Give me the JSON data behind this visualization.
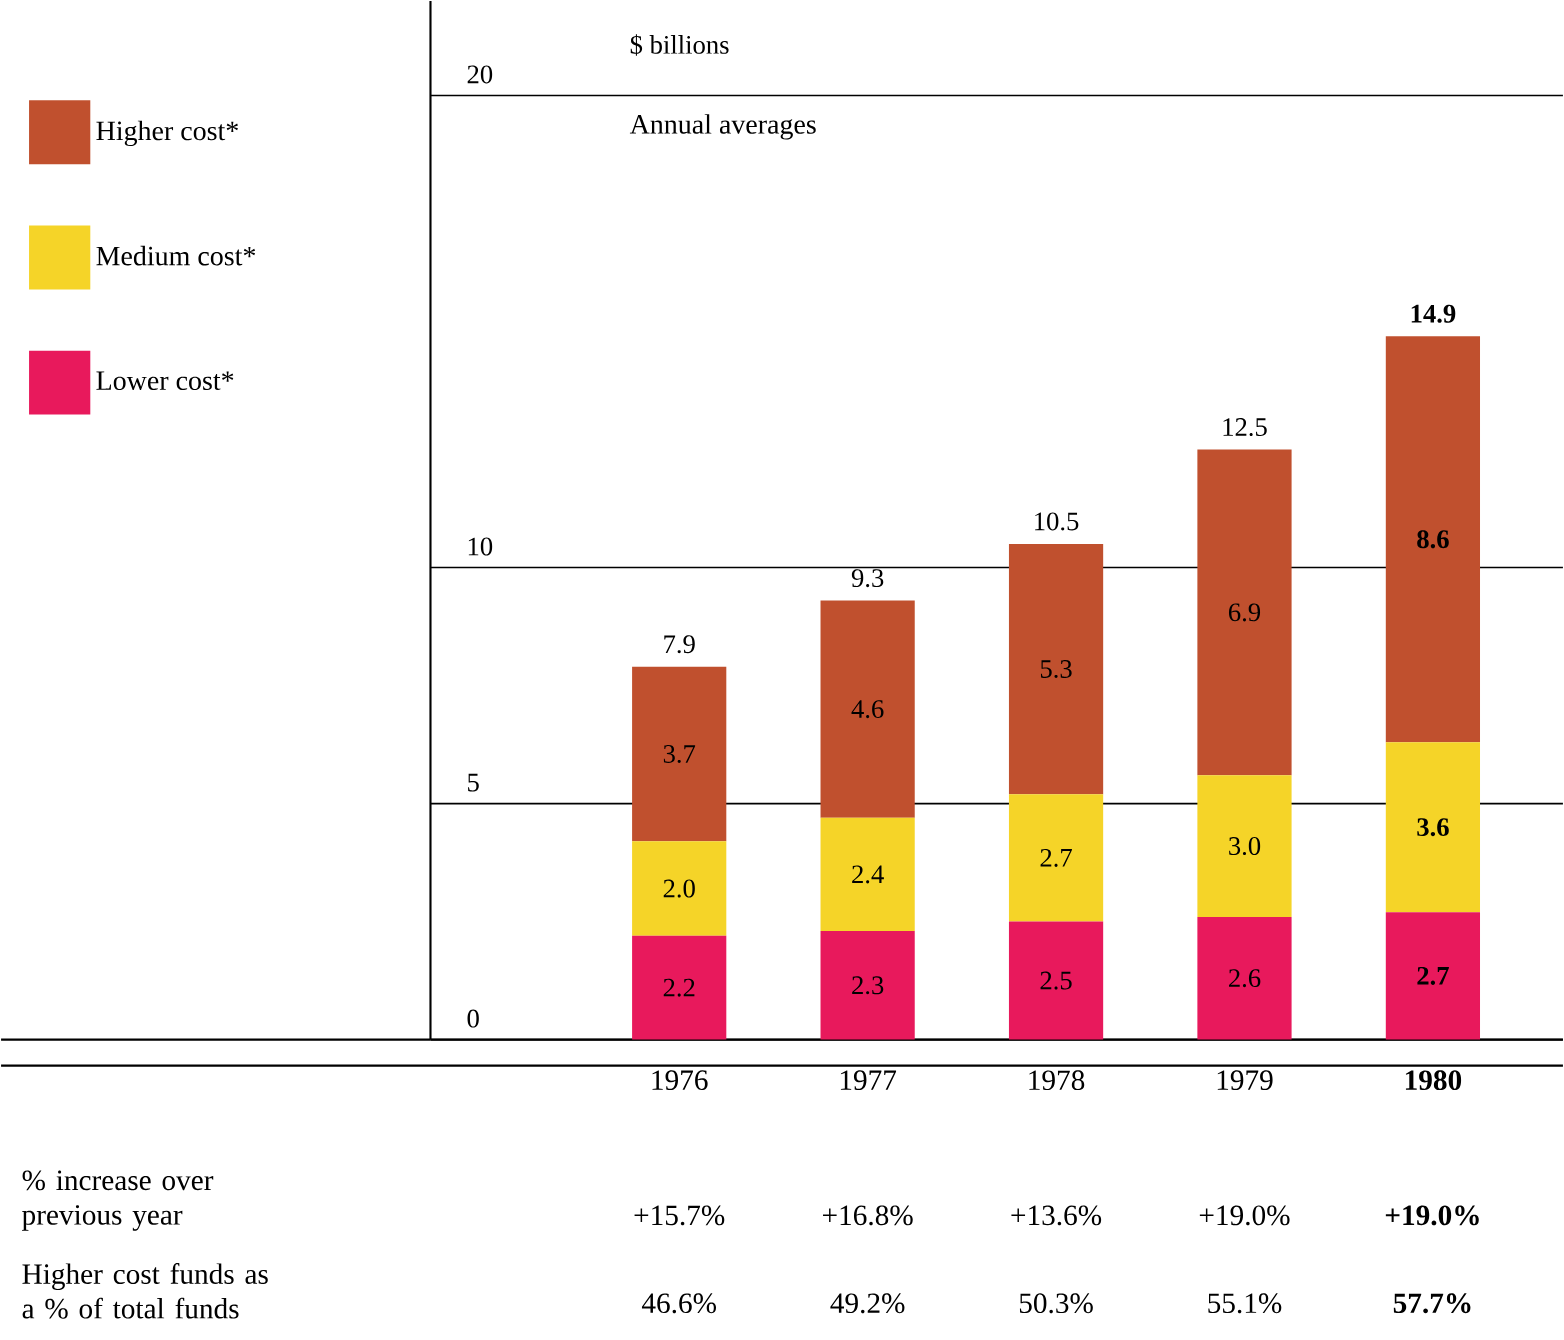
{
  "chart_data": {
    "type": "bar",
    "stacked": true,
    "categories": [
      "1976",
      "1977",
      "1978",
      "1979",
      "**1980**"
    ],
    "series": [
      {
        "name": "Lower cost*",
        "color": "#e8195c",
        "values": [
          2.2,
          2.3,
          2.5,
          2.6,
          2.7
        ],
        "value_labels": [
          "2.2",
          "2.3",
          "2.5",
          "2.6",
          "**2.7**"
        ]
      },
      {
        "name": "Medium cost*",
        "color": "#f5d428",
        "values": [
          2.0,
          2.4,
          2.7,
          3.0,
          3.6
        ],
        "value_labels": [
          "2.0",
          "2.4",
          "2.7",
          "3.0",
          "**3.6**"
        ]
      },
      {
        "name": "Higher cost*",
        "color": "#c0502e",
        "values": [
          3.7,
          4.6,
          5.3,
          6.9,
          8.6
        ],
        "value_labels": [
          "3.7",
          "4.6",
          "5.3",
          "6.9",
          "**8.6**"
        ]
      }
    ],
    "totals": [
      "7.9",
      "9.3",
      "10.5",
      "12.5",
      "**14.9**"
    ],
    "ylim": [
      0,
      22
    ],
    "yticks": [
      0,
      5,
      10,
      20
    ],
    "grid": "y",
    "legend": "left",
    "annotations": [
      "$ billions",
      "Annual averages",
      "% increase over previous year",
      "+15.7%",
      "+16.8%",
      "+13.6%",
      "+19.0%",
      "**+19.0%**",
      "Higher cost funds as a % of total funds",
      "46.6%",
      "49.2%",
      "50.3%",
      "55.1%",
      "**57.7%**"
    ]
  }
}
